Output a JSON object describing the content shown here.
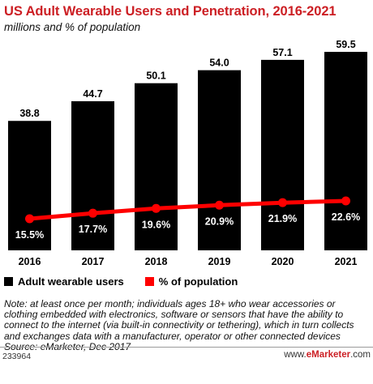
{
  "title": "US Adult Wearable Users and Penetration, 2016-2021",
  "subtitle": "millions and % of population",
  "colors": {
    "bars": "#000000",
    "line": "#ff0000",
    "title": "#cc1f24"
  },
  "chart_data": {
    "type": "bar",
    "title": "US Adult Wearable Users and Penetration, 2016-2021",
    "subtitle": "millions and % of population",
    "categories": [
      "2016",
      "2017",
      "2018",
      "2019",
      "2020",
      "2021"
    ],
    "series": [
      {
        "name": "Adult wearable users",
        "type": "bar",
        "values": [
          38.8,
          44.7,
          50.1,
          54.0,
          57.1,
          59.5
        ],
        "labels": [
          "38.8",
          "44.7",
          "50.1",
          "54.0",
          "57.1",
          "59.5"
        ]
      },
      {
        "name": "% of population",
        "type": "line",
        "values": [
          15.5,
          17.7,
          19.6,
          20.9,
          21.9,
          22.6
        ],
        "labels": [
          "15.5%",
          "17.7%",
          "19.6%",
          "20.9%",
          "21.9%",
          "22.6%"
        ]
      }
    ],
    "legend_position": "bottom-left",
    "grid": false
  },
  "note": "Note: at least once per month; individuals ages 18+ who wear accessories or clothing embedded with electronics, software or sensors that have the ability to connect to the internet (via built-in connectivity or tethering), which in turn collects and exchanges data with a manufacturer, operator or other connected devices",
  "source": "Source: eMarketer, Dec 2017",
  "footer": {
    "chart_id": "233964",
    "brand_prefix": "www.",
    "brand_name": "eMarketer",
    "brand_suffix": ".com"
  }
}
